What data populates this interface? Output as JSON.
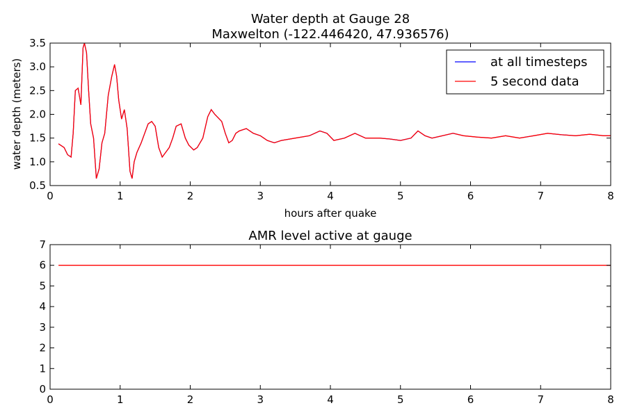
{
  "chart_data": [
    {
      "type": "line",
      "title": "Water depth at Gauge 28",
      "subtitle": "Maxwelton  (-122.446420, 47.936576)",
      "xlabel": "hours after quake",
      "ylabel": "water depth (meters)",
      "xlim": [
        0,
        8
      ],
      "ylim": [
        0.5,
        3.5
      ],
      "xticks": [
        "0",
        "1",
        "2",
        "3",
        "4",
        "5",
        "6",
        "7",
        "8"
      ],
      "yticks": [
        "0.5",
        "1.0",
        "1.5",
        "2.0",
        "2.5",
        "3.0",
        "3.5"
      ],
      "grid": false,
      "legend": {
        "position": "top-right",
        "entries": [
          "at all timesteps",
          "5 second data"
        ]
      },
      "series": [
        {
          "name": "at all timesteps",
          "color": "#0000ff"
        },
        {
          "name": "5 second data",
          "color": "#ff0000"
        }
      ],
      "x": [
        0.12,
        0.2,
        0.25,
        0.3,
        0.33,
        0.36,
        0.4,
        0.44,
        0.47,
        0.49,
        0.52,
        0.55,
        0.58,
        0.62,
        0.66,
        0.7,
        0.74,
        0.78,
        0.83,
        0.88,
        0.92,
        0.95,
        0.98,
        1.02,
        1.06,
        1.1,
        1.14,
        1.17,
        1.2,
        1.24,
        1.3,
        1.35,
        1.4,
        1.45,
        1.5,
        1.55,
        1.6,
        1.65,
        1.7,
        1.75,
        1.8,
        1.87,
        1.93,
        1.98,
        2.05,
        2.1,
        2.18,
        2.25,
        2.3,
        2.35,
        2.45,
        2.5,
        2.55,
        2.6,
        2.65,
        2.7,
        2.8,
        2.9,
        3.0,
        3.1,
        3.2,
        3.3,
        3.5,
        3.7,
        3.85,
        3.95,
        4.05,
        4.2,
        4.35,
        4.5,
        4.7,
        4.85,
        5.0,
        5.15,
        5.25,
        5.35,
        5.45,
        5.6,
        5.75,
        5.9,
        6.1,
        6.3,
        6.5,
        6.7,
        6.9,
        7.1,
        7.3,
        7.5,
        7.7,
        7.9,
        8.0
      ],
      "y": [
        1.38,
        1.3,
        1.15,
        1.1,
        1.6,
        2.5,
        2.55,
        2.2,
        3.4,
        3.5,
        3.3,
        2.5,
        1.8,
        1.5,
        0.65,
        0.85,
        1.4,
        1.6,
        2.4,
        2.8,
        3.05,
        2.8,
        2.3,
        1.9,
        2.1,
        1.7,
        0.8,
        0.65,
        1.0,
        1.2,
        1.4,
        1.6,
        1.8,
        1.85,
        1.75,
        1.3,
        1.1,
        1.2,
        1.3,
        1.5,
        1.75,
        1.8,
        1.5,
        1.35,
        1.25,
        1.3,
        1.5,
        1.95,
        2.1,
        2.0,
        1.85,
        1.6,
        1.4,
        1.45,
        1.6,
        1.65,
        1.7,
        1.6,
        1.55,
        1.45,
        1.4,
        1.45,
        1.5,
        1.55,
        1.65,
        1.6,
        1.45,
        1.5,
        1.6,
        1.5,
        1.5,
        1.48,
        1.45,
        1.5,
        1.65,
        1.55,
        1.5,
        1.55,
        1.6,
        1.55,
        1.52,
        1.5,
        1.55,
        1.5,
        1.55,
        1.6,
        1.57,
        1.55,
        1.58,
        1.55,
        1.55
      ]
    },
    {
      "type": "line",
      "title": "AMR level active at gauge",
      "xlim": [
        0,
        8
      ],
      "ylim": [
        0,
        7
      ],
      "xticks": [
        "0",
        "1",
        "2",
        "3",
        "4",
        "5",
        "6",
        "7",
        "8"
      ],
      "yticks": [
        "0",
        "1",
        "2",
        "3",
        "4",
        "5",
        "6",
        "7"
      ],
      "grid": false,
      "series": [
        {
          "color": "#ff0000"
        }
      ],
      "x": [
        0.12,
        8.0
      ],
      "y": [
        6,
        6
      ]
    }
  ]
}
